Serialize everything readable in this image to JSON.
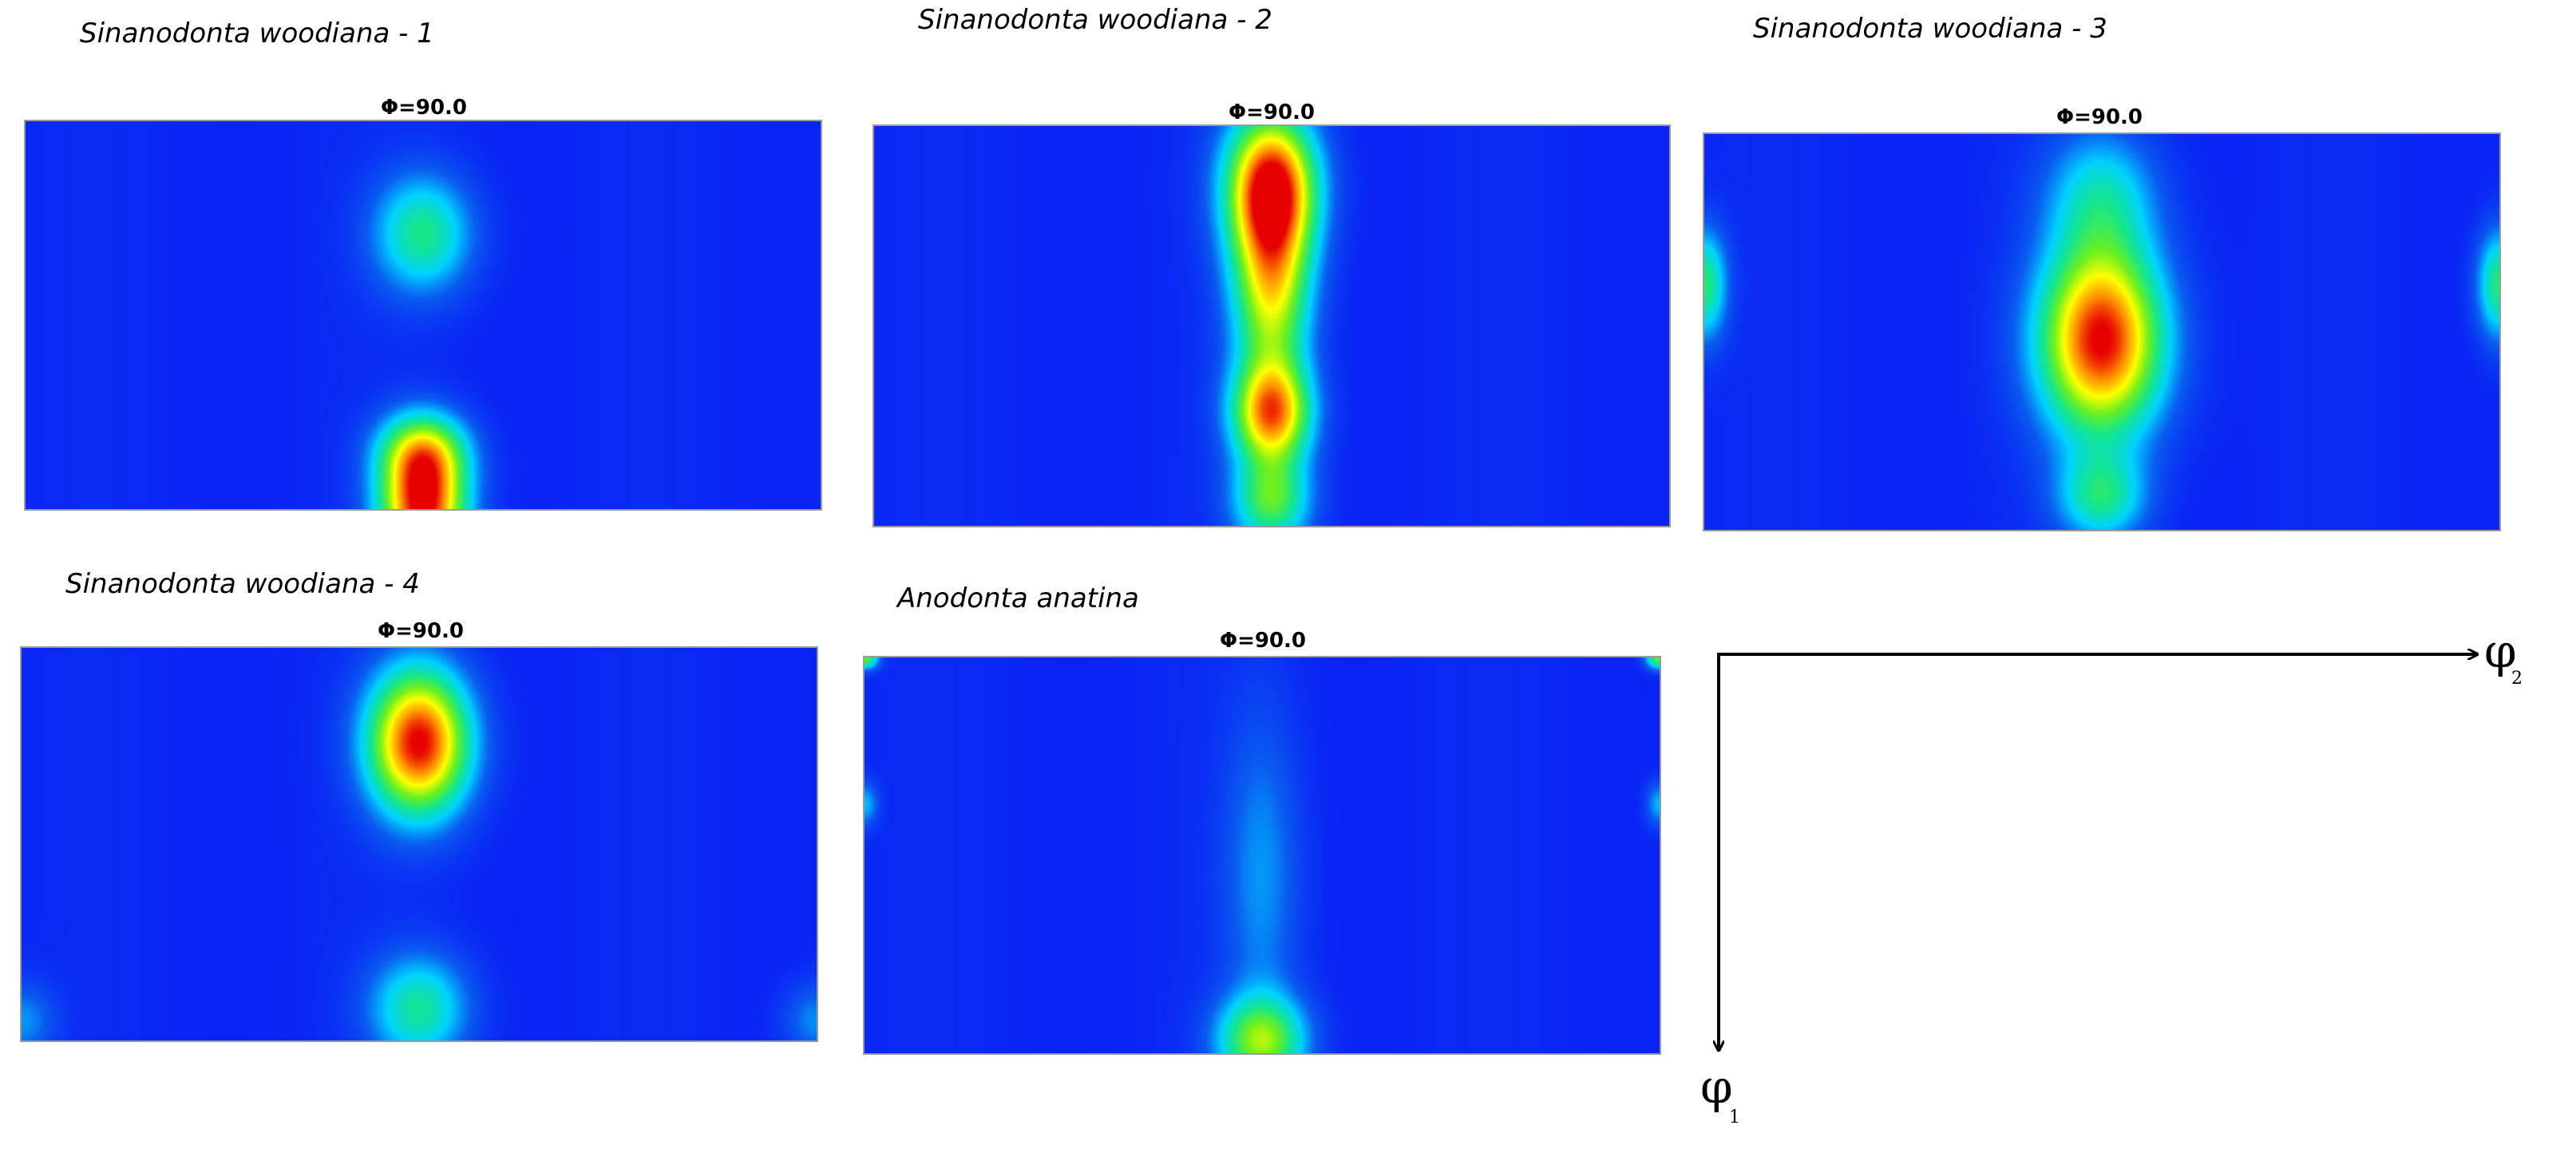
{
  "chart_data": [
    {
      "type": "heatmap",
      "title": "Sinanodonta woodiana - 1",
      "section_label": "Φ=90.0",
      "hotspots": [
        {
          "x": 0.5,
          "y": 0.29,
          "sx": 0.045,
          "sy": 0.11,
          "intensity": 0.42
        },
        {
          "x": 0.5,
          "y": 1.0,
          "sx": 0.038,
          "sy": 0.12,
          "intensity": 1.0
        },
        {
          "x": 0.5,
          "y": 0.85,
          "sx": 0.04,
          "sy": 0.07,
          "intensity": 0.45
        }
      ]
    },
    {
      "type": "heatmap",
      "title": "Sinanodonta woodiana - 2",
      "section_label": "Φ=90.0",
      "hotspots": [
        {
          "x": 0.5,
          "y": 0.15,
          "sx": 0.04,
          "sy": 0.13,
          "intensity": 1.0
        },
        {
          "x": 0.5,
          "y": 0.42,
          "sx": 0.035,
          "sy": 0.16,
          "intensity": 0.65
        },
        {
          "x": 0.5,
          "y": 0.72,
          "sx": 0.035,
          "sy": 0.09,
          "intensity": 0.82
        },
        {
          "x": 0.5,
          "y": 0.94,
          "sx": 0.035,
          "sy": 0.08,
          "intensity": 0.5
        }
      ]
    },
    {
      "type": "heatmap",
      "title": "Sinanodonta woodiana - 3",
      "section_label": "Φ=90.0",
      "hotspots": [
        {
          "x": 0.5,
          "y": 0.52,
          "sx": 0.055,
          "sy": 0.17,
          "intensity": 1.0
        },
        {
          "x": 0.5,
          "y": 0.15,
          "sx": 0.05,
          "sy": 0.12,
          "intensity": 0.3
        },
        {
          "x": 0.5,
          "y": 0.92,
          "sx": 0.04,
          "sy": 0.08,
          "intensity": 0.38
        },
        {
          "x": 0.0,
          "y": 0.38,
          "sx": 0.02,
          "sy": 0.1,
          "intensity": 0.45
        },
        {
          "x": 1.0,
          "y": 0.38,
          "sx": 0.02,
          "sy": 0.1,
          "intensity": 0.45
        }
      ]
    },
    {
      "type": "heatmap",
      "title": "Sinanodonta woodiana - 4",
      "section_label": "Φ=90.0",
      "hotspots": [
        {
          "x": 0.5,
          "y": 0.24,
          "sx": 0.045,
          "sy": 0.13,
          "intensity": 1.0
        },
        {
          "x": 0.5,
          "y": 0.92,
          "sx": 0.045,
          "sy": 0.1,
          "intensity": 0.4
        },
        {
          "x": 0.0,
          "y": 0.95,
          "sx": 0.03,
          "sy": 0.07,
          "intensity": 0.2
        },
        {
          "x": 1.0,
          "y": 0.95,
          "sx": 0.03,
          "sy": 0.07,
          "intensity": 0.2
        }
      ]
    },
    {
      "type": "heatmap",
      "title": "Anodonta anatina",
      "section_label": "Φ=90.0",
      "hotspots": [
        {
          "x": 0.5,
          "y": 0.97,
          "sx": 0.04,
          "sy": 0.08,
          "intensity": 0.55
        },
        {
          "x": 0.5,
          "y": 0.55,
          "sx": 0.035,
          "sy": 0.3,
          "intensity": 0.2
        },
        {
          "x": 0.0,
          "y": 0.0,
          "sx": 0.012,
          "sy": 0.02,
          "intensity": 0.55
        },
        {
          "x": 1.0,
          "y": 0.0,
          "sx": 0.012,
          "sy": 0.02,
          "intensity": 0.55
        },
        {
          "x": 0.0,
          "y": 0.37,
          "sx": 0.012,
          "sy": 0.04,
          "intensity": 0.25
        },
        {
          "x": 1.0,
          "y": 0.37,
          "sx": 0.012,
          "sy": 0.04,
          "intensity": 0.25
        }
      ]
    }
  ],
  "axes": {
    "horizontal": {
      "symbol": "φ",
      "subscript": "2"
    },
    "vertical": {
      "symbol": "φ",
      "subscript": "1"
    }
  },
  "colors": {
    "low": "#0a23f5",
    "ramp": [
      "#0a23f5",
      "#0a5cf0",
      "#00d2ff",
      "#14e68c",
      "#6ef01e",
      "#ffff00",
      "#ff8c00",
      "#e60000"
    ]
  }
}
